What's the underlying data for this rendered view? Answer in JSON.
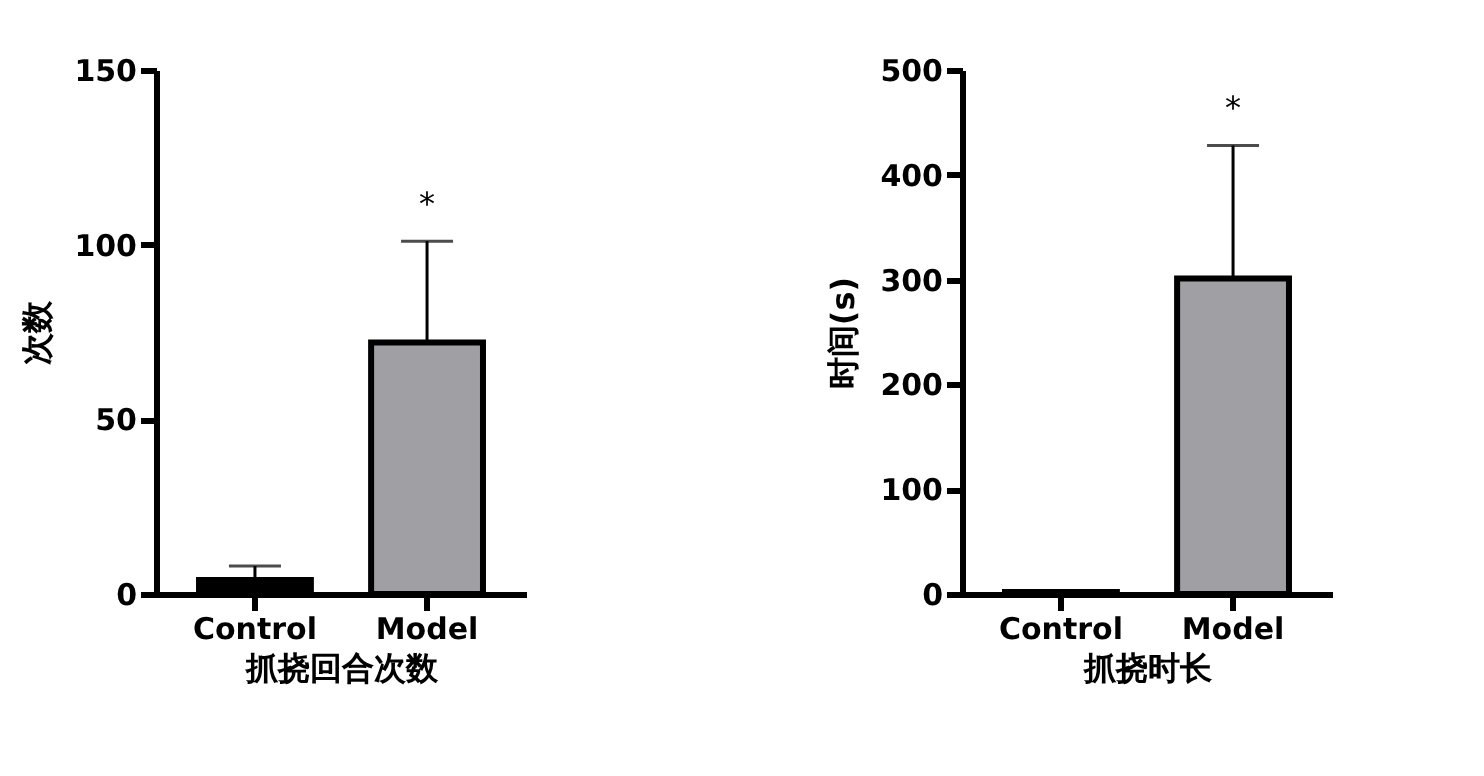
{
  "chart_data": [
    {
      "type": "bar",
      "categories": [
        "Control",
        "Model"
      ],
      "values": [
        4,
        72
      ],
      "colors": [
        "#000000",
        "#a0a0a4"
      ],
      "errors": [
        [
          4,
          8
        ],
        [
          72,
          101
        ]
      ],
      "ylim": [
        0,
        150
      ],
      "yticks": [
        0,
        50,
        100,
        150
      ],
      "ylabel": "次数",
      "xlabel": "抓挠回合次数",
      "annotations": [
        "*"
      ]
    },
    {
      "type": "bar",
      "categories": [
        "Control",
        "Model"
      ],
      "values": [
        2,
        301
      ],
      "colors": [
        "#000000",
        "#a0a0a4"
      ],
      "errors": [
        null,
        [
          301,
          428
        ]
      ],
      "ylim": [
        0,
        500
      ],
      "yticks": [
        0,
        100,
        200,
        300,
        400,
        500
      ],
      "ylabel": "时间(s)",
      "xlabel": "抓挠时长",
      "annotations": [
        "*"
      ]
    }
  ]
}
